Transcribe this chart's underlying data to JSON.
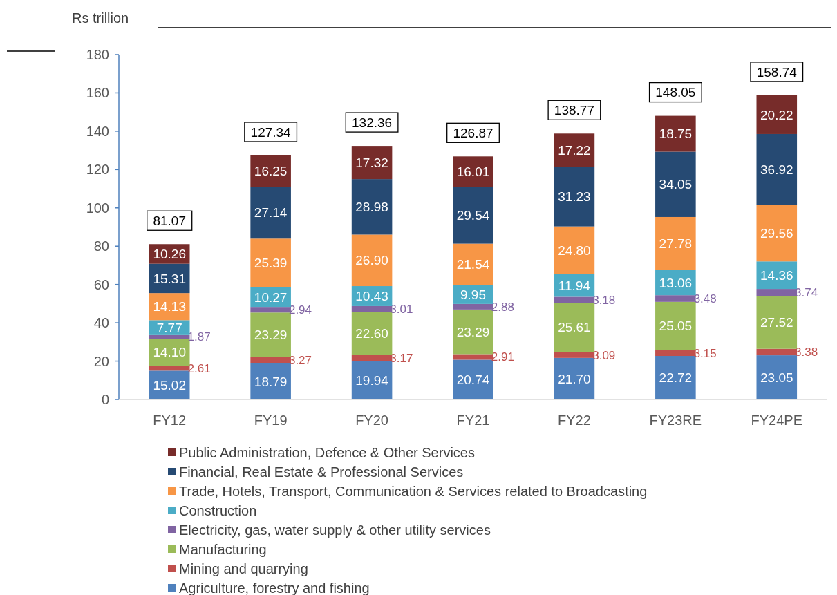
{
  "chart_data": {
    "type": "bar",
    "ylabel": "Rs trillion",
    "stacked": true,
    "legend": "bottom",
    "ylim": [
      0,
      180
    ],
    "yticks": [
      0,
      20,
      40,
      60,
      80,
      100,
      120,
      140,
      160,
      180
    ],
    "categories": [
      "FY12",
      "FY19",
      "FY20",
      "FY21",
      "FY22",
      "FY23RE",
      "FY24PE"
    ],
    "series": [
      {
        "name": "Agriculture, forestry and fishing",
        "color": "#4f81bd",
        "values": [
          15.02,
          18.79,
          19.94,
          20.74,
          21.7,
          22.72,
          23.05
        ],
        "value_labels": [
          "15.02",
          "18.79",
          "19.94",
          "20.74",
          "21.70",
          "22.72",
          "23.05"
        ]
      },
      {
        "name": "Mining and quarrying",
        "color": "#c0504d",
        "values": [
          2.61,
          3.27,
          3.17,
          2.91,
          3.09,
          3.15,
          3.38
        ],
        "value_labels": [
          "2.61",
          "3.27",
          "3.17",
          "2.91",
          "3.09",
          "3.15",
          "3.38"
        ]
      },
      {
        "name": "Manufacturing",
        "color": "#9bbb59",
        "values": [
          14.1,
          23.29,
          22.6,
          23.29,
          25.61,
          25.05,
          27.52
        ],
        "value_labels": [
          "14.10",
          "23.29",
          "22.60",
          "23.29",
          "25.61",
          "25.05",
          "27.52"
        ]
      },
      {
        "name": "Electricity, gas, water supply & other utility services",
        "color": "#8064a2",
        "values": [
          1.87,
          2.94,
          3.01,
          2.88,
          3.18,
          3.48,
          3.74
        ],
        "value_labels": [
          "1.87",
          "2.94",
          "3.01",
          "2.88",
          "3.18",
          "3.48",
          "3.74"
        ]
      },
      {
        "name": "Construction",
        "color": "#4bacc6",
        "values": [
          7.77,
          10.27,
          10.43,
          9.95,
          11.94,
          13.06,
          14.36
        ],
        "value_labels": [
          "7.77",
          "10.27",
          "10.43",
          "9.95",
          "11.94",
          "13.06",
          "14.36"
        ]
      },
      {
        "name": "Trade, Hotels, Transport, Communication & Services related to Broadcasting",
        "color": "#f79646",
        "values": [
          14.13,
          25.39,
          26.9,
          21.54,
          24.8,
          27.78,
          29.56
        ],
        "value_labels": [
          "14.13",
          "25.39",
          "26.90",
          "21.54",
          "24.80",
          "27.78",
          "29.56"
        ]
      },
      {
        "name": "Financial, Real Estate & Professional Services",
        "color": "#264a73",
        "values": [
          15.31,
          27.14,
          28.98,
          29.54,
          31.23,
          34.05,
          36.92
        ],
        "value_labels": [
          "15.31",
          "27.14",
          "28.98",
          "29.54",
          "31.23",
          "34.05",
          "36.92"
        ]
      },
      {
        "name": "Public Administration, Defence & Other Services",
        "color": "#772c2a",
        "values": [
          10.26,
          16.25,
          17.32,
          16.01,
          17.22,
          18.75,
          20.22
        ],
        "value_labels": [
          "10.26",
          "16.25",
          "17.32",
          "16.01",
          "17.22",
          "18.75",
          "20.22"
        ]
      }
    ],
    "totals": [
      "81.07",
      "127.34",
      "132.36",
      "126.87",
      "138.77",
      "148.05",
      "158.74"
    ]
  }
}
